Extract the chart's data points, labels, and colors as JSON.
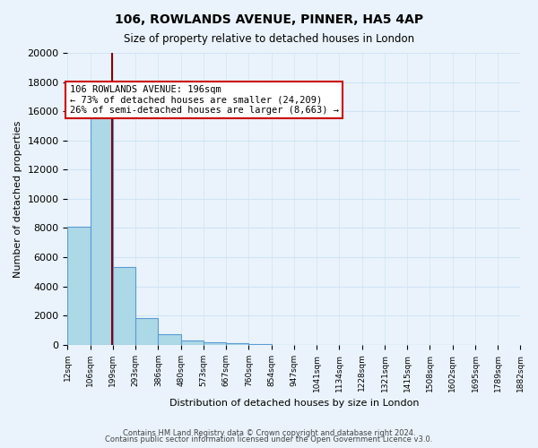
{
  "title": "106, ROWLANDS AVENUE, PINNER, HA5 4AP",
  "subtitle": "Size of property relative to detached houses in London",
  "xlabel": "Distribution of detached houses by size in London",
  "ylabel": "Number of detached properties",
  "bar_values": [
    8100,
    16500,
    5300,
    1800,
    700,
    300,
    150,
    100,
    50,
    0,
    0,
    0,
    0,
    0,
    0,
    0,
    0,
    0
  ],
  "bar_labels": [
    "12sqm",
    "106sqm",
    "199sqm",
    "293sqm",
    "386sqm",
    "480sqm",
    "573sqm",
    "667sqm",
    "760sqm",
    "854sqm",
    "947sqm",
    "1041sqm",
    "1134sqm",
    "1228sqm",
    "1321sqm",
    "1415sqm",
    "1508sqm",
    "1602sqm",
    "1695sqm",
    "1789sqm",
    "1882sqm"
  ],
  "bar_edges": [
    12,
    106,
    199,
    293,
    386,
    480,
    573,
    667,
    760,
    854,
    947,
    1041,
    1134,
    1228,
    1321,
    1415,
    1508,
    1602,
    1695,
    1789,
    1882
  ],
  "property_line_x": 196,
  "property_sqm": 196,
  "bar_color": "#add8e6",
  "bar_edge_color": "#5b9bd5",
  "line_color": "#8b0000",
  "annotation_text": "106 ROWLANDS AVENUE: 196sqm\n← 73% of detached houses are smaller (24,209)\n26% of semi-detached houses are larger (8,663) →",
  "annotation_box_color": "#ffffff",
  "annotation_box_edge": "#cc0000",
  "ylim": [
    0,
    20000
  ],
  "yticks": [
    0,
    2000,
    4000,
    6000,
    8000,
    10000,
    12000,
    14000,
    16000,
    18000,
    20000
  ],
  "grid_color": "#d0e4f7",
  "bg_color": "#eaf3fb",
  "footer_line1": "Contains HM Land Registry data © Crown copyright and database right 2024.",
  "footer_line2": "Contains public sector information licensed under the Open Government Licence v3.0."
}
